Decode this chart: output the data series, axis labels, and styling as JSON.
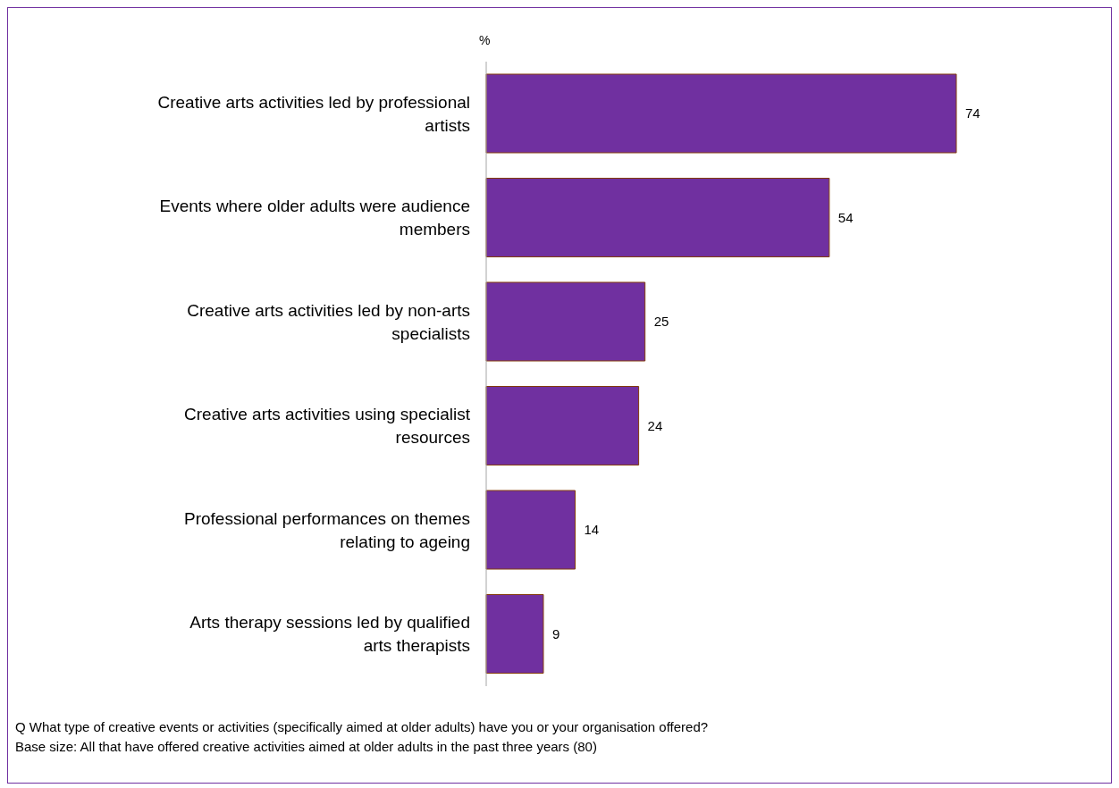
{
  "chart_data": {
    "type": "bar",
    "orientation": "horizontal",
    "ylabel": "%",
    "categories": [
      "Creative arts activities led by professional artists",
      "Events where older adults were audience members",
      "Creative arts activities led by non-arts specialists",
      "Creative arts activities using specialist resources",
      "Professional performances on themes relating to ageing",
      "Arts therapy sessions led by qualified arts therapists"
    ],
    "values": [
      74,
      54,
      25,
      24,
      14,
      9
    ],
    "color": "#7030a0",
    "data_labels": true,
    "annotations": [
      "Q  What type of creative events or activities (specifically aimed at older adults) have you or your organisation offered?",
      "Base size: All that have offered creative activities aimed at older adults in the past three years (80)"
    ]
  }
}
